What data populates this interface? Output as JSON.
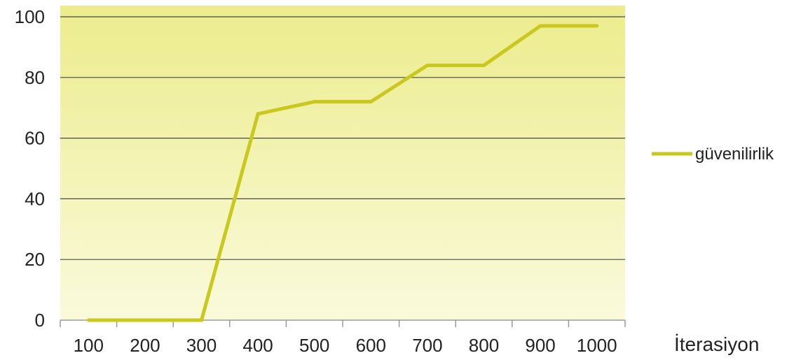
{
  "chart_data": {
    "type": "line",
    "categories": [
      "100",
      "200",
      "300",
      "400",
      "500",
      "600",
      "700",
      "800",
      "900",
      "1000"
    ],
    "series": [
      {
        "name": "güvenilirlik",
        "values": [
          0,
          0,
          0,
          68,
          72,
          72,
          84,
          84,
          97,
          97
        ],
        "color": "#c8c81e"
      }
    ],
    "xlabel": "İterasiyon",
    "ylabel": "",
    "ylim": [
      0,
      100
    ],
    "yticks": [
      0,
      20,
      40,
      60,
      80,
      100
    ],
    "grid": true,
    "legend": "right",
    "background": {
      "top": "#ecec8c",
      "bottom": "#fafadc"
    }
  }
}
